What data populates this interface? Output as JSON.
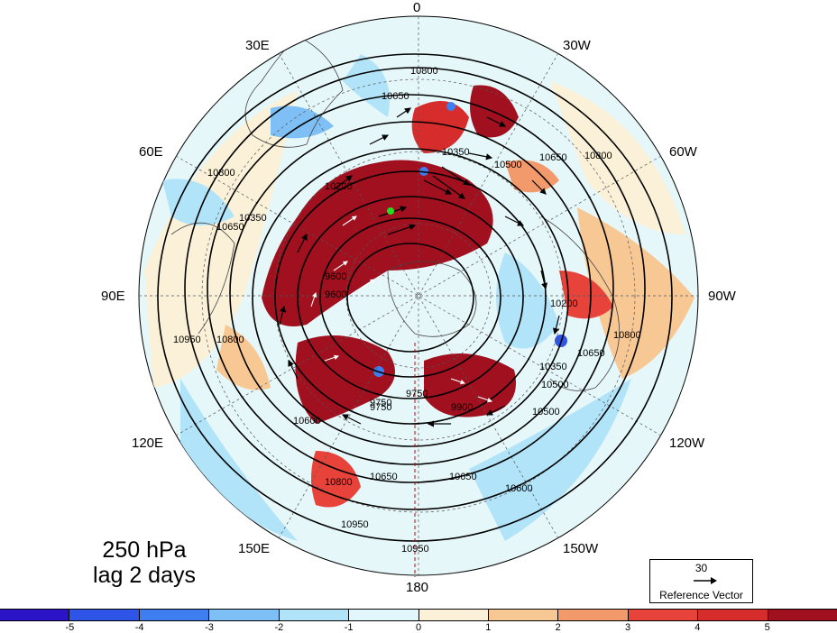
{
  "map": {
    "lon_labels": {
      "n": "0",
      "nne": "30W",
      "ne": "60W",
      "e": "90W",
      "se": "120W",
      "sse": "150W",
      "s": "180",
      "ssw": "150E",
      "sw": "120E",
      "w": "90E",
      "nw": "60E",
      "nnw": "30E"
    },
    "contour_labels": [
      "10800",
      "10650",
      "10350",
      "10500",
      "10650",
      "10800",
      "10800",
      "10650",
      "10350",
      "10200",
      "10500",
      "10650",
      "10800",
      "9900",
      "9750",
      "9600",
      "9750",
      "10650",
      "10650",
      "10600",
      "10800",
      "10950",
      "10950",
      "10950",
      "10800",
      "10200",
      "10350",
      "10500",
      "9750",
      "9600",
      "10600"
    ],
    "caption": {
      "line1": "250 hPa",
      "line2": "lag 2 days"
    },
    "reference_vector": {
      "magnitude": "30",
      "label": "Reference Vector"
    },
    "colorbar": {
      "ticks": [
        "-5",
        "-4",
        "-3",
        "-2",
        "-1",
        "0",
        "1",
        "2",
        "3",
        "4",
        "5"
      ],
      "colors": [
        "#2b14c8",
        "#2e55e8",
        "#3f7ef0",
        "#7ec0f5",
        "#b2e4f9",
        "#e2f7fb",
        "#fbf1d8",
        "#f8c894",
        "#f29a6b",
        "#e8433a",
        "#d62c2c",
        "#a0101e"
      ]
    },
    "colors": {
      "ocean_positive": "#a0101e",
      "ocean_negative": "#3f7ef0",
      "marker": "#22dd22"
    }
  }
}
